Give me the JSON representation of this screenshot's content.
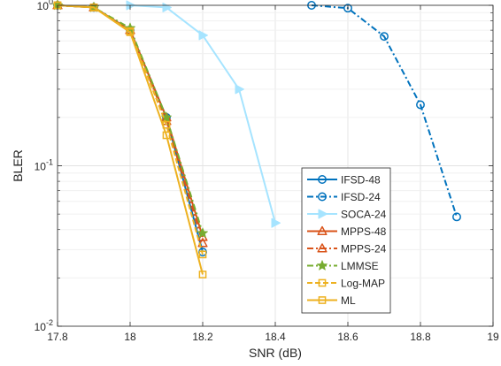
{
  "chart_data": {
    "type": "line",
    "title": "",
    "xlabel": "SNR (dB)",
    "ylabel": "BLER",
    "xlim": [
      17.8,
      19
    ],
    "ylim": [
      0.01,
      1
    ],
    "yscale": "log",
    "grid": true,
    "legend_position": "lower-right",
    "x_ticks": [
      {
        "value": 17.8,
        "label": "17.8"
      },
      {
        "value": 18,
        "label": "18"
      },
      {
        "value": 18.2,
        "label": "18.2"
      },
      {
        "value": 18.4,
        "label": "18.4"
      },
      {
        "value": 18.6,
        "label": "18.6"
      },
      {
        "value": 18.8,
        "label": "18.8"
      },
      {
        "value": 19,
        "label": "19"
      }
    ],
    "y_ticks": [
      {
        "value": 1,
        "base": "10",
        "exp": "0"
      },
      {
        "value": 0.1,
        "base": "10",
        "exp": "-1"
      },
      {
        "value": 0.01,
        "base": "10",
        "exp": "-2"
      }
    ],
    "series": [
      {
        "name": "IFSD-48",
        "color": "#0072BD",
        "dash": "solid",
        "marker": "circle",
        "x": [
          17.8,
          17.9,
          18.0,
          18.1,
          18.2
        ],
        "y": [
          1.0,
          0.97,
          0.7,
          0.2,
          0.029
        ]
      },
      {
        "name": "IFSD-24",
        "color": "#0072BD",
        "dash": "dashdot",
        "marker": "circle",
        "x": [
          18.5,
          18.6,
          18.7,
          18.8,
          18.9
        ],
        "y": [
          1.0,
          0.96,
          0.64,
          0.24,
          0.048
        ]
      },
      {
        "name": "SOCA-24",
        "color": "#A6E4FF",
        "dash": "solid",
        "marker": "triangle-right",
        "x": [
          18.0,
          18.1,
          18.2,
          18.3,
          18.4
        ],
        "y": [
          1.0,
          0.97,
          0.65,
          0.3,
          0.044
        ]
      },
      {
        "name": "MPPS-48",
        "color": "#D95319",
        "dash": "solid",
        "marker": "triangle-up",
        "x": [
          17.8,
          17.9,
          18.0,
          18.1,
          18.2
        ],
        "y": [
          1.0,
          0.97,
          0.7,
          0.2,
          0.036
        ]
      },
      {
        "name": "MPPS-24",
        "color": "#D95319",
        "dash": "dashdot",
        "marker": "triangle-up",
        "x": [
          17.8,
          17.9,
          18.0,
          18.1,
          18.2
        ],
        "y": [
          1.0,
          0.97,
          0.7,
          0.19,
          0.033
        ]
      },
      {
        "name": "LMMSE",
        "color": "#77AC30",
        "dash": "dashdot",
        "marker": "star",
        "x": [
          17.8,
          17.9,
          18.0,
          18.1,
          18.2
        ],
        "y": [
          1.0,
          0.97,
          0.72,
          0.2,
          0.038
        ]
      },
      {
        "name": "Log-MAP",
        "color": "#EDB120",
        "dash": "dashed",
        "marker": "square",
        "x": [
          17.8,
          17.9,
          18.0,
          18.1,
          18.2
        ],
        "y": [
          1.0,
          0.97,
          0.69,
          0.18,
          0.028
        ]
      },
      {
        "name": "ML",
        "color": "#EDB120",
        "dash": "solid",
        "marker": "square",
        "x": [
          17.8,
          17.9,
          18.0,
          18.1,
          18.2
        ],
        "y": [
          1.0,
          0.97,
          0.68,
          0.155,
          0.021
        ]
      }
    ]
  }
}
